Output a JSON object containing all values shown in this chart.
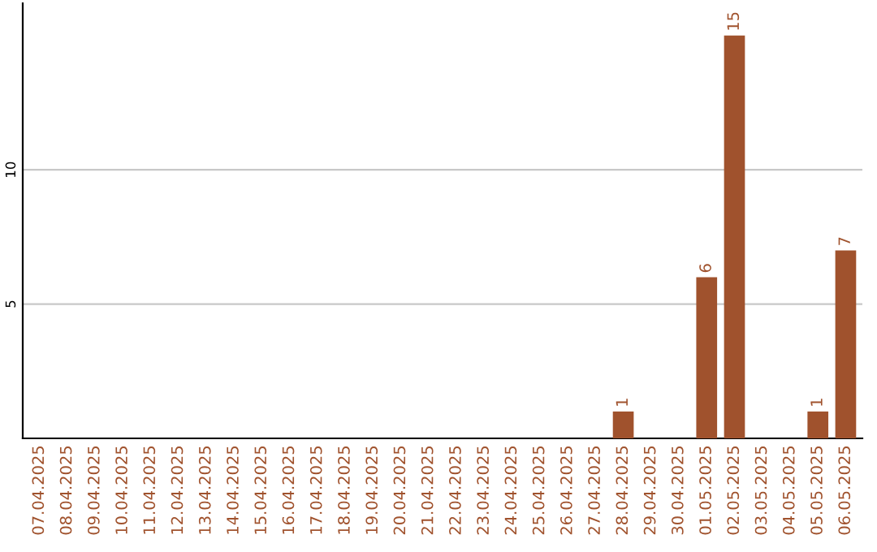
{
  "chart_data": {
    "type": "bar",
    "categories": [
      "07.04.2025",
      "08.04.2025",
      "09.04.2025",
      "10.04.2025",
      "11.04.2025",
      "12.04.2025",
      "13.04.2025",
      "14.04.2025",
      "15.04.2025",
      "16.04.2025",
      "17.04.2025",
      "18.04.2025",
      "19.04.2025",
      "20.04.2025",
      "21.04.2025",
      "22.04.2025",
      "23.04.2025",
      "24.04.2025",
      "25.04.2025",
      "26.04.2025",
      "27.04.2025",
      "28.04.2025",
      "29.04.2025",
      "30.04.2025",
      "01.05.2025",
      "02.05.2025",
      "03.05.2025",
      "04.05.2025",
      "05.05.2025",
      "06.05.2025"
    ],
    "values": [
      0,
      0,
      0,
      0,
      0,
      0,
      0,
      0,
      0,
      0,
      0,
      0,
      0,
      0,
      0,
      0,
      0,
      0,
      0,
      0,
      0,
      1,
      0,
      0,
      6,
      15,
      0,
      0,
      1,
      7
    ],
    "value_labels": [
      null,
      null,
      null,
      null,
      null,
      null,
      null,
      null,
      null,
      null,
      null,
      null,
      null,
      null,
      null,
      null,
      null,
      null,
      null,
      null,
      null,
      "1",
      null,
      null,
      "6",
      "15",
      null,
      null,
      "1",
      "7"
    ],
    "color": "#a0522d",
    "ylim": [
      0,
      16.2
    ],
    "yticks": [
      5,
      10
    ],
    "grid": "y"
  }
}
